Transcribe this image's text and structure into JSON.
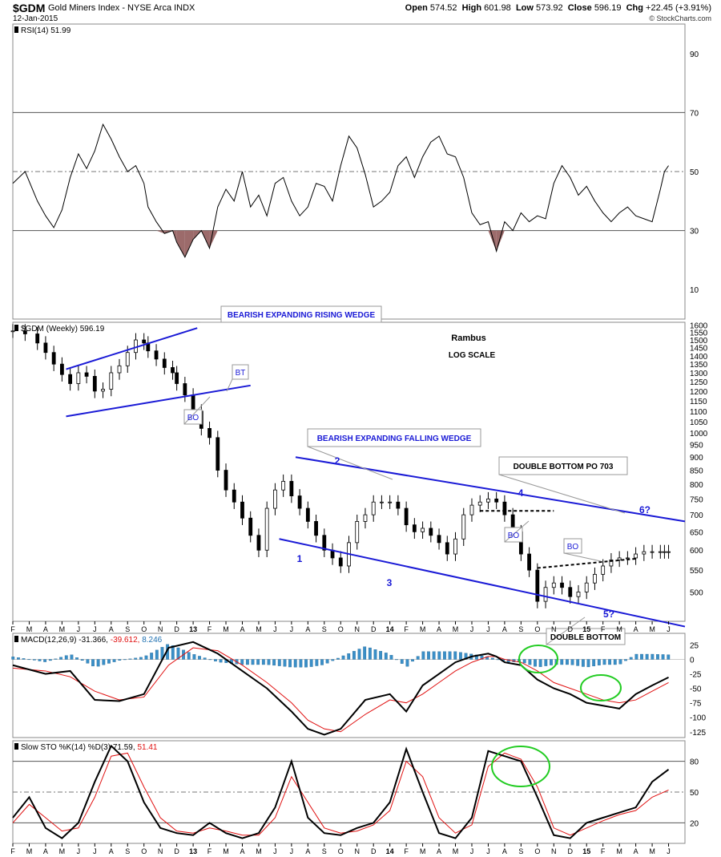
{
  "header": {
    "ticker": "$GDM",
    "name": "Gold Miners Index - NYSE Arca INDX",
    "date": "12-Jan-2015",
    "credit": "© StockCharts.com",
    "open_label": "Open",
    "open": "574.52",
    "high_label": "High",
    "high": "601.98",
    "low_label": "Low",
    "low": "573.92",
    "close_label": "Close",
    "close": "596.19",
    "chg_label": "Chg",
    "chg": "+22.45 (+3.91%)"
  },
  "colors": {
    "price_line": "#000000",
    "trend_lines": "#1a1ad6",
    "signal_line": "#e01010",
    "histogram": "#3a8fc8",
    "oversold_fill": "#9c6b6b",
    "circles": "#22cc22",
    "grid": "#999999"
  },
  "chart_data": [
    {
      "type": "line",
      "panel": "RSI",
      "legend": "RSI(14) 51.99",
      "ylim": [
        0,
        100
      ],
      "yticks": [
        "90",
        "70",
        "50",
        "30",
        "10"
      ],
      "reference_lines": [
        70,
        50,
        30
      ],
      "series": [
        {
          "name": "RSI(14)",
          "x": [
            0,
            3,
            6,
            8,
            10,
            12,
            14,
            16,
            18,
            20,
            22,
            24,
            26,
            28,
            30,
            32,
            33,
            35,
            37,
            39,
            40,
            42,
            44,
            46,
            48,
            50,
            52,
            54,
            56,
            58,
            60,
            62,
            64,
            66,
            68,
            70,
            72,
            74,
            76,
            78,
            80,
            82,
            84,
            86,
            88,
            90,
            92,
            94,
            96,
            98,
            100,
            102,
            104,
            106,
            108,
            110,
            112,
            114,
            116,
            118,
            120,
            122,
            124,
            126,
            128,
            130,
            132,
            134,
            136,
            138,
            140,
            142,
            144,
            146,
            148,
            150,
            152,
            154,
            156,
            158,
            159,
            160
          ],
          "values": [
            46,
            50,
            40,
            35,
            31,
            37,
            48,
            56,
            51,
            57,
            66,
            61,
            55,
            50,
            52,
            46,
            38,
            33,
            29,
            30,
            26,
            21,
            27,
            30,
            24,
            38,
            44,
            40,
            50,
            38,
            42,
            35,
            46,
            48,
            40,
            35,
            38,
            46,
            45,
            40,
            52,
            62,
            58,
            49,
            38,
            40,
            43,
            52,
            55,
            48,
            55,
            60,
            62,
            56,
            55,
            48,
            36,
            32,
            33,
            23,
            33,
            30,
            36,
            33,
            35,
            34,
            46,
            52,
            48,
            42,
            45,
            40,
            36,
            33,
            36,
            38,
            35,
            34,
            33,
            44,
            50,
            52
          ]
        }
      ]
    },
    {
      "type": "line",
      "panel": "Price",
      "title": "$GDM (Weekly) 596.19",
      "scale": "log",
      "ylim": [
        440,
        1620
      ],
      "yticks": [
        "1600",
        "1550",
        "1500",
        "1450",
        "1400",
        "1350",
        "1300",
        "1250",
        "1200",
        "1150",
        "1100",
        "1050",
        "1000",
        "950",
        "900",
        "850",
        "800",
        "750",
        "700",
        "650",
        "600",
        "550",
        "500"
      ],
      "xticks": [
        "F",
        "M",
        "A",
        "M",
        "J",
        "J",
        "A",
        "S",
        "O",
        "N",
        "D",
        "13",
        "F",
        "M",
        "A",
        "M",
        "J",
        "J",
        "A",
        "S",
        "O",
        "N",
        "D",
        "14",
        "F",
        "M",
        "A",
        "M",
        "J",
        "J",
        "A",
        "S",
        "O",
        "N",
        "D",
        "15",
        "F",
        "M",
        "A",
        "M",
        "J"
      ],
      "series": [
        {
          "name": "$GDM (Weekly)",
          "x": [
            0,
            3,
            6,
            8,
            10,
            12,
            14,
            16,
            18,
            20,
            22,
            24,
            26,
            28,
            30,
            32,
            33,
            35,
            37,
            39,
            40,
            42,
            44,
            46,
            48,
            50,
            52,
            54,
            56,
            58,
            60,
            62,
            64,
            66,
            68,
            70,
            72,
            74,
            76,
            78,
            80,
            82,
            84,
            86,
            88,
            90,
            92,
            94,
            96,
            98,
            100,
            102,
            104,
            106,
            108,
            110,
            112,
            114,
            116,
            118,
            120,
            122,
            124,
            126,
            128,
            130,
            132,
            134,
            136,
            138,
            140,
            142,
            144,
            146,
            148,
            150,
            152,
            154,
            156,
            158,
            159,
            160
          ],
          "values": [
            1560,
            1540,
            1480,
            1420,
            1350,
            1290,
            1240,
            1300,
            1280,
            1200,
            1210,
            1300,
            1340,
            1420,
            1500,
            1480,
            1430,
            1380,
            1330,
            1300,
            1240,
            1180,
            1100,
            1020,
            980,
            850,
            780,
            740,
            690,
            640,
            600,
            720,
            780,
            810,
            760,
            720,
            680,
            640,
            600,
            580,
            560,
            620,
            680,
            700,
            740,
            740,
            740,
            720,
            670,
            650,
            660,
            640,
            620,
            590,
            630,
            700,
            730,
            740,
            750,
            740,
            700,
            650,
            590,
            550,
            480,
            510,
            520,
            510,
            490,
            500,
            520,
            540,
            560,
            575,
            580,
            580,
            590,
            596,
            596,
            596,
            596,
            596
          ]
        }
      ],
      "annotations": [
        "BEARISH EXPANDING RISING WEDGE",
        "BT",
        "BO",
        "Rambus",
        "LOG SCALE",
        "BEARISH EXPANDING FALLING WEDGE",
        "2",
        "4",
        "1",
        "3",
        "BO",
        "DOUBLE BOTTOM PO 703",
        "BO",
        "6?",
        "5?",
        "DOUBLE BOTTOM"
      ]
    },
    {
      "type": "line",
      "panel": "MACD",
      "legend_prefix": "MACD(12,26,9)",
      "legend_macd": "-31.366",
      "legend_signal": "-39.612",
      "legend_hist": "8.246",
      "ylim": [
        -135,
        45
      ],
      "yticks": [
        "25",
        "0",
        "-25",
        "-50",
        "-75",
        "-100",
        "-125"
      ],
      "series": [
        {
          "name": "MACD",
          "x": [
            0,
            8,
            14,
            20,
            26,
            32,
            38,
            44,
            50,
            56,
            62,
            68,
            72,
            76,
            80,
            86,
            92,
            96,
            100,
            104,
            108,
            112,
            116,
            118,
            120,
            124,
            128,
            132,
            136,
            140,
            144,
            148,
            152,
            156,
            160
          ],
          "values": [
            -10,
            -25,
            -20,
            -70,
            -72,
            -60,
            20,
            30,
            10,
            -20,
            -50,
            -90,
            -120,
            -130,
            -120,
            -70,
            -60,
            -90,
            -45,
            -25,
            -5,
            5,
            10,
            5,
            -5,
            -10,
            -35,
            -50,
            -60,
            -75,
            -80,
            -85,
            -60,
            -45,
            -31
          ]
        },
        {
          "name": "Signal",
          "x": [
            0,
            8,
            14,
            20,
            26,
            32,
            38,
            44,
            50,
            56,
            62,
            68,
            72,
            76,
            80,
            86,
            92,
            96,
            100,
            104,
            108,
            112,
            116,
            118,
            120,
            124,
            128,
            132,
            136,
            140,
            144,
            148,
            152,
            156,
            160
          ],
          "values": [
            -15,
            -20,
            -30,
            -55,
            -70,
            -65,
            -10,
            20,
            15,
            -10,
            -40,
            -75,
            -105,
            -120,
            -125,
            -95,
            -70,
            -75,
            -60,
            -40,
            -20,
            -5,
            5,
            5,
            0,
            -5,
            -20,
            -40,
            -50,
            -60,
            -70,
            -75,
            -70,
            -55,
            -40
          ]
        }
      ]
    },
    {
      "type": "line",
      "panel": "Slow STO",
      "legend_prefix": "Slow STO %K(14) %D(3)",
      "legend_k": "71.59",
      "legend_d": "51.41",
      "ylim": [
        0,
        100
      ],
      "yticks": [
        "80",
        "50",
        "20"
      ],
      "reference_lines": [
        80,
        50,
        20
      ],
      "xticks": [
        "F",
        "M",
        "A",
        "M",
        "J",
        "J",
        "A",
        "S",
        "O",
        "N",
        "D",
        "13",
        "F",
        "M",
        "A",
        "M",
        "J",
        "J",
        "A",
        "S",
        "O",
        "N",
        "D",
        "14",
        "F",
        "M",
        "A",
        "M",
        "J",
        "J",
        "A",
        "S",
        "O",
        "N",
        "D",
        "15",
        "F",
        "M",
        "A",
        "M",
        "J"
      ],
      "series": [
        {
          "name": "%K",
          "x": [
            0,
            4,
            8,
            12,
            16,
            20,
            24,
            28,
            32,
            36,
            40,
            44,
            48,
            52,
            56,
            60,
            64,
            68,
            72,
            76,
            80,
            84,
            88,
            92,
            96,
            100,
            104,
            108,
            112,
            116,
            120,
            124,
            128,
            132,
            136,
            140,
            144,
            148,
            152,
            156,
            160
          ],
          "values": [
            25,
            45,
            15,
            5,
            20,
            60,
            95,
            80,
            40,
            15,
            10,
            8,
            20,
            10,
            5,
            10,
            35,
            80,
            25,
            10,
            8,
            15,
            20,
            40,
            92,
            50,
            10,
            5,
            25,
            90,
            85,
            80,
            45,
            8,
            5,
            20,
            25,
            30,
            35,
            60,
            72
          ]
        },
        {
          "name": "%D",
          "x": [
            0,
            4,
            8,
            12,
            16,
            20,
            24,
            28,
            32,
            36,
            40,
            44,
            48,
            52,
            56,
            60,
            64,
            68,
            72,
            76,
            80,
            84,
            88,
            92,
            96,
            100,
            104,
            108,
            112,
            116,
            120,
            124,
            128,
            132,
            136,
            140,
            144,
            148,
            152,
            156,
            160
          ],
          "values": [
            20,
            38,
            25,
            12,
            15,
            45,
            85,
            88,
            55,
            25,
            12,
            10,
            15,
            12,
            8,
            8,
            25,
            65,
            40,
            15,
            10,
            12,
            18,
            32,
            80,
            65,
            25,
            10,
            18,
            75,
            88,
            82,
            55,
            15,
            8,
            15,
            22,
            28,
            32,
            45,
            52
          ]
        }
      ]
    }
  ]
}
